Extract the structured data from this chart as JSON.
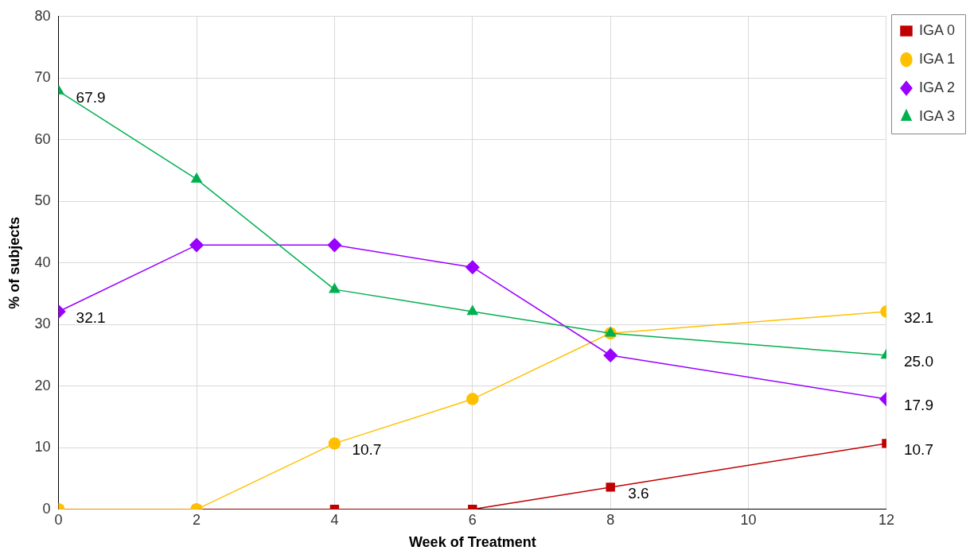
{
  "chart_data": {
    "type": "line",
    "xlabel": "Week of Treatment",
    "ylabel": "% of subjects",
    "xlim": [
      0,
      12
    ],
    "xticks": [
      0,
      2,
      4,
      6,
      8,
      10,
      12
    ],
    "ylim": [
      0,
      80
    ],
    "yticks": [
      0,
      10,
      20,
      30,
      40,
      50,
      60,
      70,
      80
    ],
    "grid": true,
    "legend": "right",
    "line_style": "solid",
    "series": [
      {
        "name": "IGA 0",
        "color": "#c00000",
        "marker": "square",
        "x": [
          0,
          2,
          4,
          6,
          8,
          12
        ],
        "values": [
          0,
          0,
          0,
          0,
          3.6,
          10.7
        ],
        "value_labels": [
          null,
          null,
          null,
          null,
          "3.6",
          "10.7"
        ]
      },
      {
        "name": "IGA 1",
        "color": "#ffc000",
        "marker": "circle",
        "x": [
          0,
          2,
          4,
          6,
          8,
          12
        ],
        "values": [
          0,
          0,
          10.7,
          17.9,
          28.6,
          32.1
        ],
        "value_labels": [
          null,
          null,
          "10.7",
          null,
          null,
          "32.1"
        ]
      },
      {
        "name": "IGA 2",
        "color": "#9900ff",
        "marker": "diamond",
        "x": [
          0,
          2,
          4,
          6,
          8,
          12
        ],
        "values": [
          32.1,
          42.9,
          42.9,
          39.3,
          25.0,
          17.9
        ],
        "value_labels": [
          "32.1",
          null,
          null,
          null,
          null,
          "17.9"
        ]
      },
      {
        "name": "IGA 3",
        "color": "#00b050",
        "marker": "triangle",
        "x": [
          0,
          2,
          4,
          6,
          8,
          12
        ],
        "values": [
          67.9,
          53.6,
          35.7,
          32.1,
          28.6,
          25.0
        ],
        "value_labels": [
          "67.9",
          null,
          null,
          null,
          null,
          "25.0"
        ]
      }
    ]
  }
}
